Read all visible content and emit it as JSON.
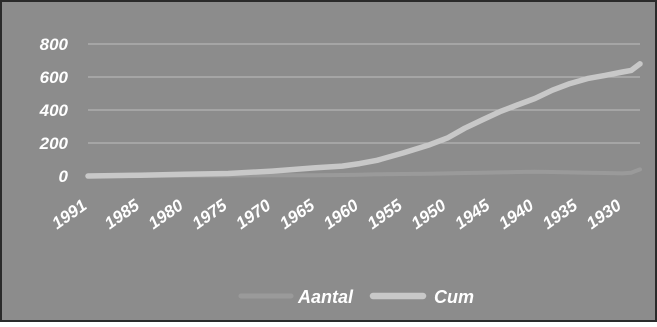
{
  "colors": {
    "background": "#8c8c8c",
    "frame": "#2a2a2a",
    "gridline": "#b4b4b4",
    "text": "#ffffff",
    "aantal": "#9a9a9a",
    "cum": "#c8c8c8"
  },
  "chart_data": {
    "type": "line",
    "title": "",
    "xlabel": "",
    "ylabel": "",
    "ylim": [
      0,
      800
    ],
    "yticks": [
      "0",
      "200",
      "400",
      "600",
      "800"
    ],
    "xtick_labels": [
      "1991",
      "1985",
      "1980",
      "1975",
      "1970",
      "1965",
      "1960",
      "1955",
      "1950",
      "1945",
      "1940",
      "1935",
      "1930"
    ],
    "x": [
      1991,
      1985,
      1980,
      1975,
      1970,
      1965,
      1962,
      1960,
      1958,
      1955,
      1952,
      1950,
      1948,
      1946,
      1944,
      1942,
      1940,
      1938,
      1936,
      1934,
      1932,
      1930,
      1929,
      1928
    ],
    "grid": true,
    "legend_position": "bottom",
    "series": [
      {
        "name": "Aantal",
        "values": [
          0,
          1,
          2,
          3,
          4,
          5,
          6,
          8,
          10,
          12,
          14,
          16,
          18,
          20,
          22,
          24,
          26,
          24,
          22,
          20,
          18,
          16,
          20,
          40
        ]
      },
      {
        "name": "Cum",
        "values": [
          0,
          5,
          10,
          15,
          30,
          50,
          60,
          75,
          95,
          140,
          190,
          230,
          290,
          340,
          390,
          430,
          470,
          520,
          560,
          590,
          610,
          630,
          640,
          680
        ]
      }
    ]
  }
}
